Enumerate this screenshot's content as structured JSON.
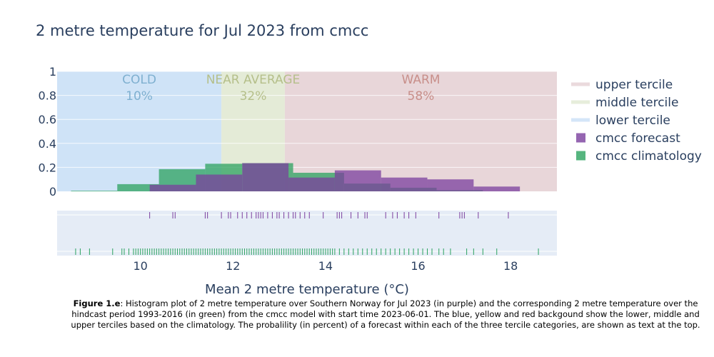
{
  "chart_data": {
    "type": "bar",
    "title": "2 metre temperature for Jul 2023 from cmcc",
    "xlabel": "Mean 2 metre temperature (°C)",
    "ylabel": "",
    "xlim": [
      8.2,
      19.0
    ],
    "ylim": [
      0,
      1
    ],
    "x_ticks": [
      "10",
      "12",
      "14",
      "16",
      "18"
    ],
    "y_ticks": [
      "0",
      "0.2",
      "0.4",
      "0.6",
      "0.8",
      "1"
    ],
    "terciles": [
      {
        "name": "lower tercile",
        "label": "COLD",
        "percent": "10%",
        "from": 8.2,
        "to": 11.75,
        "color": "#cfe3f7",
        "label_color": "#7fb0d0"
      },
      {
        "name": "middle tercile",
        "label": "NEAR AVERAGE",
        "percent": "32%",
        "from": 11.75,
        "to": 13.12,
        "color": "#e4ebd7",
        "label_color": "#b5bf8a"
      },
      {
        "name": "upper tercile",
        "label": "WARM",
        "percent": "58%",
        "from": 13.12,
        "to": 19.0,
        "color": "#e8d6d9",
        "label_color": "#c88f8a"
      }
    ],
    "series": [
      {
        "name": "cmcc climatology",
        "color": "#2ca25f",
        "bins": [
          {
            "x0": 8.5,
            "x1": 9.5,
            "y": 0.005
          },
          {
            "x0": 9.5,
            "x1": 10.4,
            "y": 0.06
          },
          {
            "x0": 10.4,
            "x1": 11.4,
            "y": 0.185
          },
          {
            "x0": 11.4,
            "x1": 12.2,
            "y": 0.23
          },
          {
            "x0": 12.2,
            "x1": 13.3,
            "y": 0.235
          },
          {
            "x0": 13.3,
            "x1": 14.4,
            "y": 0.155
          },
          {
            "x0": 14.4,
            "x1": 15.4,
            "y": 0.065
          },
          {
            "x0": 15.4,
            "x1": 16.4,
            "y": 0.03
          },
          {
            "x0": 16.4,
            "x1": 17.4,
            "y": 0.01
          }
        ],
        "rug": [
          8.6,
          8.7,
          8.9,
          9.4,
          9.6,
          9.65,
          9.75,
          9.85,
          9.9,
          9.95,
          10.0,
          10.05,
          10.1,
          10.15,
          10.2,
          10.25,
          10.3,
          10.35,
          10.4,
          10.45,
          10.5,
          10.55,
          10.6,
          10.65,
          10.7,
          10.75,
          10.8,
          10.85,
          10.9,
          10.95,
          11.0,
          11.05,
          11.1,
          11.15,
          11.2,
          11.25,
          11.3,
          11.35,
          11.4,
          11.45,
          11.5,
          11.55,
          11.6,
          11.65,
          11.7,
          11.75,
          11.8,
          11.85,
          11.9,
          11.95,
          12.0,
          12.05,
          12.1,
          12.15,
          12.2,
          12.25,
          12.3,
          12.35,
          12.4,
          12.45,
          12.5,
          12.55,
          12.6,
          12.65,
          12.7,
          12.75,
          12.8,
          12.85,
          12.9,
          12.95,
          13.0,
          13.05,
          13.1,
          13.15,
          13.2,
          13.25,
          13.3,
          13.35,
          13.4,
          13.45,
          13.5,
          13.55,
          13.6,
          13.65,
          13.7,
          13.75,
          13.8,
          13.85,
          13.9,
          13.95,
          14.0,
          14.05,
          14.1,
          14.15,
          14.2,
          14.3,
          14.4,
          14.5,
          14.6,
          14.7,
          14.8,
          14.9,
          15.0,
          15.1,
          15.2,
          15.3,
          15.4,
          15.5,
          15.6,
          15.7,
          15.8,
          15.9,
          16.0,
          16.1,
          16.2,
          16.3,
          16.45,
          16.55,
          16.7,
          17.05,
          17.2,
          17.4,
          17.7,
          18.6
        ]
      },
      {
        "name": "cmcc forecast",
        "color": "#7b3f9e",
        "bins": [
          {
            "x0": 10.2,
            "x1": 11.2,
            "y": 0.055
          },
          {
            "x0": 11.2,
            "x1": 12.2,
            "y": 0.14
          },
          {
            "x0": 12.2,
            "x1": 13.2,
            "y": 0.235
          },
          {
            "x0": 13.2,
            "x1": 14.2,
            "y": 0.115
          },
          {
            "x0": 14.2,
            "x1": 15.2,
            "y": 0.175
          },
          {
            "x0": 15.2,
            "x1": 16.2,
            "y": 0.115
          },
          {
            "x0": 16.2,
            "x1": 17.2,
            "y": 0.1
          },
          {
            "x0": 17.2,
            "x1": 18.2,
            "y": 0.04
          }
        ],
        "rug": [
          10.2,
          10.7,
          10.75,
          11.4,
          11.45,
          11.75,
          11.9,
          11.95,
          12.1,
          12.2,
          12.3,
          12.4,
          12.5,
          12.55,
          12.6,
          12.65,
          12.75,
          12.85,
          12.95,
          13.0,
          13.1,
          13.2,
          13.3,
          13.35,
          13.45,
          13.55,
          13.65,
          13.95,
          14.25,
          14.3,
          14.35,
          14.55,
          14.7,
          14.85,
          14.9,
          15.3,
          15.45,
          15.55,
          15.7,
          15.8,
          15.95,
          16.45,
          16.9,
          16.95,
          17.0,
          17.3,
          17.95
        ]
      }
    ],
    "legend_position": "right"
  },
  "caption": {
    "figure_label": "Figure 1.e",
    "lines": [
      ": Histogram plot of 2 metre temperature over Southern Norway for Jul 2023 (in purple) and the corresponding 2 metre temperature over the",
      "hindcast period 1993-2016 (in green) from the cmcc model with start time 2023-06-01. The blue, yellow and red backgound show the lower, middle and",
      "upper terciles based on the climatology. The probalility (in percent) of a forecast within each of the three tercile categories, are shown as text at the top."
    ]
  }
}
